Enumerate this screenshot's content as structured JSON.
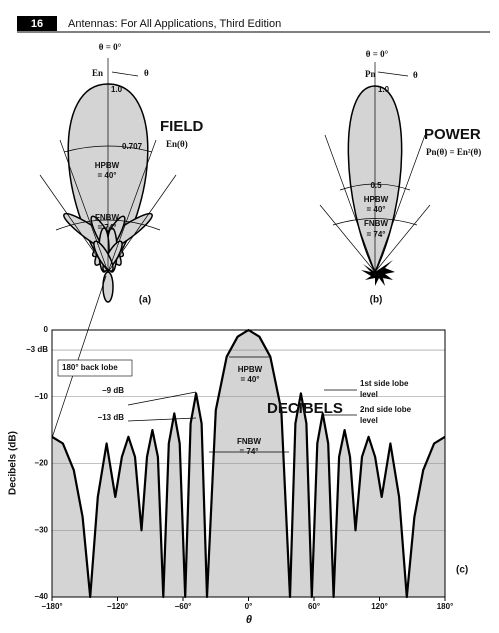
{
  "header": {
    "page_number": "16",
    "running_title": "Antennas: For All Applications, Third Edition"
  },
  "figure_a": {
    "theta_zero": "θ = 0°",
    "axis_name": "En",
    "theta": "θ",
    "peak": "1.0",
    "title": "FIELD",
    "function": "En(θ)",
    "half_power": "0.707",
    "hpbw": [
      "HPBW",
      "= 40°"
    ],
    "fnbw": [
      "FNBW",
      "= 74°"
    ],
    "panel": "(a)"
  },
  "figure_b": {
    "theta_zero": "θ = 0°",
    "axis_name": "Pn",
    "theta": "θ",
    "peak": "1.0",
    "title": "POWER",
    "function": "Pn(θ) = En²(θ)",
    "half_power": "0.5",
    "hpbw": [
      "HPBW",
      "= 40°"
    ],
    "fnbw": [
      "FNBW",
      "= 74°"
    ],
    "panel": "(b)"
  },
  "chart_data": {
    "type": "line",
    "ylabel": "Decibels (dB)",
    "xlabel": "θ",
    "x": [
      -180,
      -170,
      -160,
      -152,
      -145,
      -138,
      -130,
      -122,
      -116,
      -110,
      -104,
      -98,
      -93,
      -88,
      -83,
      -78,
      -73,
      -68,
      -63,
      -58,
      -53,
      -48,
      -43,
      -38,
      -30,
      -20,
      -10,
      0,
      10,
      20,
      30,
      38,
      43,
      48,
      53,
      58,
      63,
      68,
      73,
      78,
      83,
      88,
      93,
      98,
      104,
      110,
      116,
      122,
      130,
      138,
      145,
      152,
      160,
      170,
      180
    ],
    "series": [
      {
        "color": "#000000",
        "values": [
          -16,
          -17,
          -21,
          -28,
          -40,
          -25,
          -17,
          -25,
          -19,
          -16,
          -19,
          -30,
          -19,
          -15,
          -19,
          -40,
          -17,
          -12.5,
          -17,
          -40,
          -14,
          -9.5,
          -14,
          -40,
          -12,
          -4,
          -1,
          0,
          -1,
          -4,
          -12,
          -40,
          -14,
          -9.5,
          -14,
          -40,
          -17,
          -12.5,
          -17,
          -40,
          -19,
          -15,
          -19,
          -30,
          -19,
          -16,
          -19,
          -25,
          -17,
          -25,
          -40,
          -28,
          -21,
          -17,
          -16
        ]
      }
    ],
    "xlim": [
      -180,
      180
    ],
    "ylim": [
      -40,
      0
    ],
    "xticks": [
      {
        "value": -180,
        "label": "−180°"
      },
      {
        "value": -120,
        "label": "−120°"
      },
      {
        "value": -60,
        "label": "−60°"
      },
      {
        "value": 0,
        "label": "0°"
      },
      {
        "value": 60,
        "label": "60°"
      },
      {
        "value": 120,
        "label": "120°"
      },
      {
        "value": 180,
        "label": "180°"
      }
    ],
    "yticks": [
      0,
      {
        "value": -3,
        "label": "−3 dB"
      },
      {
        "value": -10,
        "label": "−10"
      },
      {
        "value": -20,
        "label": "−20"
      },
      {
        "value": -30,
        "label": "−30"
      },
      {
        "value": -40,
        "label": "−40"
      }
    ],
    "grid": true,
    "fill": "#d4d4d4",
    "annotations": {
      "back_lobe": "180° back lobe",
      "hpbw": [
        "HPBW",
        "= 40°"
      ],
      "first_level": "−9 dB",
      "second_level": "−13 dB",
      "first_side_lobe": [
        "1st side lobe",
        "level"
      ],
      "second_side_lobe": [
        "2nd side lobe",
        "level"
      ],
      "title": "DECIBELS",
      "fnbw": [
        "FNBW",
        "= 74°"
      ],
      "panel": "(c)"
    }
  }
}
